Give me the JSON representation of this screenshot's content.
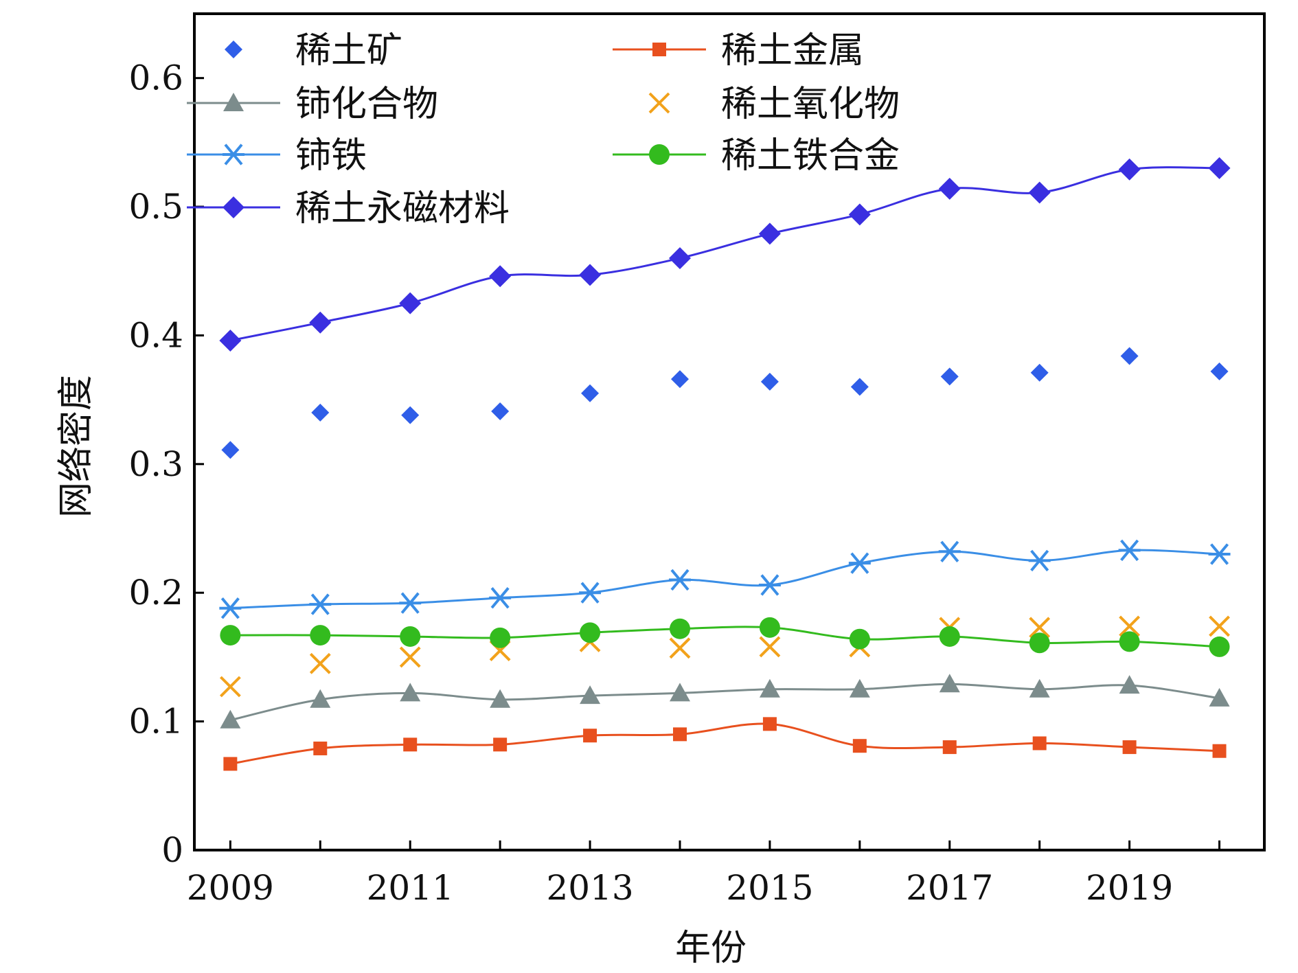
{
  "chart_data": {
    "type": "line",
    "title": "",
    "xlabel": "年份",
    "ylabel": "网络密度",
    "xlim": [
      2008.6,
      2020.5
    ],
    "ylim": [
      0,
      0.65
    ],
    "x": [
      2009,
      2010,
      2011,
      2012,
      2013,
      2014,
      2015,
      2016,
      2017,
      2018,
      2019,
      2020
    ],
    "x_ticks": [
      2009,
      2011,
      2013,
      2015,
      2017,
      2019
    ],
    "x_tick_labels": [
      "2009",
      "2011",
      "2013",
      "2015",
      "2017",
      "2019"
    ],
    "y_ticks": [
      0,
      0.1,
      0.2,
      0.3,
      0.4,
      0.5,
      0.6
    ],
    "y_tick_labels": [
      "0",
      "0.1",
      "0.2",
      "0.3",
      "0.4",
      "0.5",
      "0.6"
    ],
    "grid": false,
    "legend_position": "top-left",
    "series": [
      {
        "name": "稀土矿",
        "color": "#2f5ee8",
        "marker": "diamond-small",
        "line": false,
        "values": [
          0.311,
          0.34,
          0.338,
          0.341,
          0.355,
          0.366,
          0.364,
          0.36,
          0.368,
          0.371,
          0.384,
          0.372
        ]
      },
      {
        "name": "稀土金属",
        "color": "#e8501e",
        "marker": "square",
        "line": true,
        "values": [
          0.067,
          0.079,
          0.082,
          0.082,
          0.089,
          0.09,
          0.098,
          0.081,
          0.08,
          0.083,
          0.08,
          0.077
        ]
      },
      {
        "name": "铈化合物",
        "color": "#7c8c8c",
        "marker": "triangle",
        "line": true,
        "values": [
          0.101,
          0.117,
          0.122,
          0.117,
          0.12,
          0.122,
          0.125,
          0.125,
          0.129,
          0.125,
          0.128,
          0.118
        ]
      },
      {
        "name": "稀土氧化物",
        "color": "#f2a21b",
        "marker": "x",
        "line": false,
        "values": [
          0.127,
          0.145,
          0.15,
          0.155,
          0.162,
          0.157,
          0.158,
          0.158,
          0.173,
          0.173,
          0.174,
          0.174
        ]
      },
      {
        "name": "铈铁",
        "color": "#3a8ee6",
        "marker": "asterisk",
        "line": true,
        "values": [
          0.188,
          0.191,
          0.192,
          0.196,
          0.2,
          0.21,
          0.206,
          0.223,
          0.232,
          0.225,
          0.233,
          0.23
        ]
      },
      {
        "name": "稀土铁合金",
        "color": "#33bb1e",
        "marker": "circle",
        "line": true,
        "values": [
          0.167,
          0.167,
          0.166,
          0.165,
          0.169,
          0.172,
          0.173,
          0.164,
          0.166,
          0.161,
          0.162,
          0.158
        ]
      },
      {
        "name": "稀土永磁材料",
        "color": "#3a2fe0",
        "marker": "diamond",
        "line": true,
        "values": [
          0.396,
          0.41,
          0.425,
          0.446,
          0.447,
          0.46,
          0.479,
          0.494,
          0.514,
          0.511,
          0.529,
          0.53
        ]
      }
    ]
  }
}
